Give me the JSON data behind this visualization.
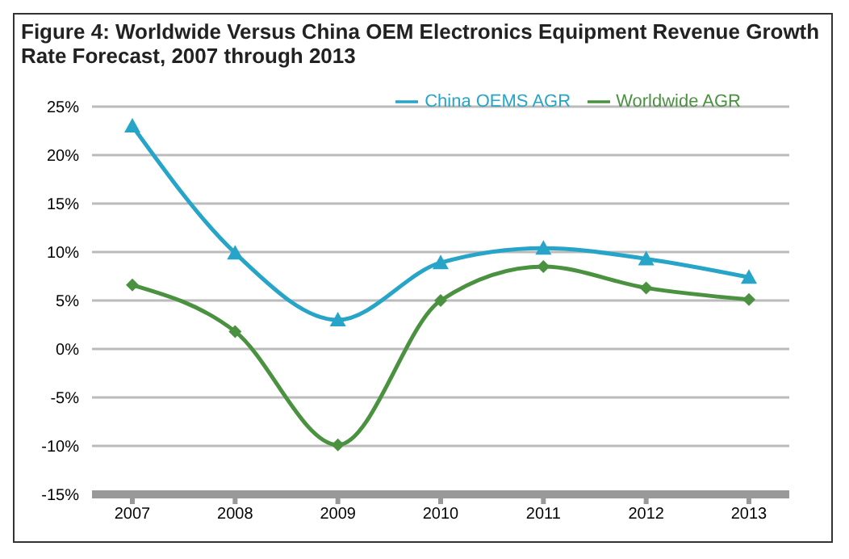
{
  "chart_data": {
    "type": "line",
    "title": "Figure 4: Worldwide Versus China OEM Electronics Equipment Revenue Growth Rate Forecast, 2007 through 2013",
    "categories": [
      "2007",
      "2008",
      "2009",
      "2010",
      "2011",
      "2012",
      "2013"
    ],
    "series": [
      {
        "name": "Worldwide AGR",
        "color": "#4a9140",
        "marker": "diamond",
        "values": [
          6.6,
          1.8,
          -9.9,
          5,
          8.5,
          6.3,
          5.1
        ]
      },
      {
        "name": "China OEMS AGR",
        "color": "#27a5c8",
        "marker": "triangle",
        "values": [
          23,
          9.9,
          3,
          8.9,
          10.4,
          9.3,
          7.4
        ]
      }
    ],
    "ylim": [
      -15,
      25
    ],
    "yticks": [
      {
        "value": -15,
        "label": "-15%"
      },
      {
        "value": -10,
        "label": "-10%"
      },
      {
        "value": -5,
        "label": "-5%"
      },
      {
        "value": 0,
        "label": "0%"
      },
      {
        "value": 5,
        "label": "5%"
      },
      {
        "value": 10,
        "label": "10%"
      },
      {
        "value": 15,
        "label": "15%"
      },
      {
        "value": 20,
        "label": "20%"
      },
      {
        "value": 25,
        "label": "25%"
      }
    ],
    "grid": "y",
    "legend": "top right"
  }
}
